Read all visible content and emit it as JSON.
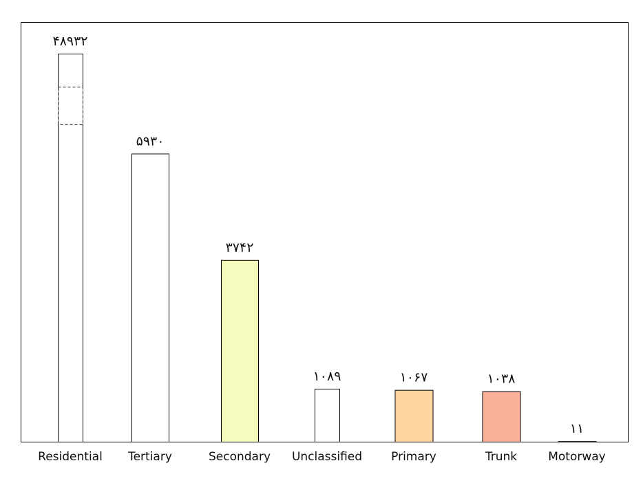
{
  "chart_data": {
    "type": "bar",
    "categories": [
      "Residential",
      "Tertiary",
      "Secondary",
      "Unclassified",
      "Primary",
      "Trunk",
      "Motorway"
    ],
    "values": [
      48932,
      5930,
      3742,
      1089,
      1067,
      1038,
      11
    ],
    "value_labels": [
      "۴۸۹۳۲",
      "۵۹۳۰",
      "۳۷۴۲",
      "۱۰۸۹",
      "۱۰۶۷",
      "۱۰۳۸",
      "۱۱"
    ],
    "colors": [
      "#ffffff",
      "#ffffff",
      "#f6fbbd",
      "#ffffff",
      "#fdd6a1",
      "#fcb19a",
      "#e88f9b"
    ],
    "title": "",
    "xlabel": "",
    "ylabel": "",
    "grid": false,
    "legend": "none",
    "axis_break": "Residential"
  }
}
